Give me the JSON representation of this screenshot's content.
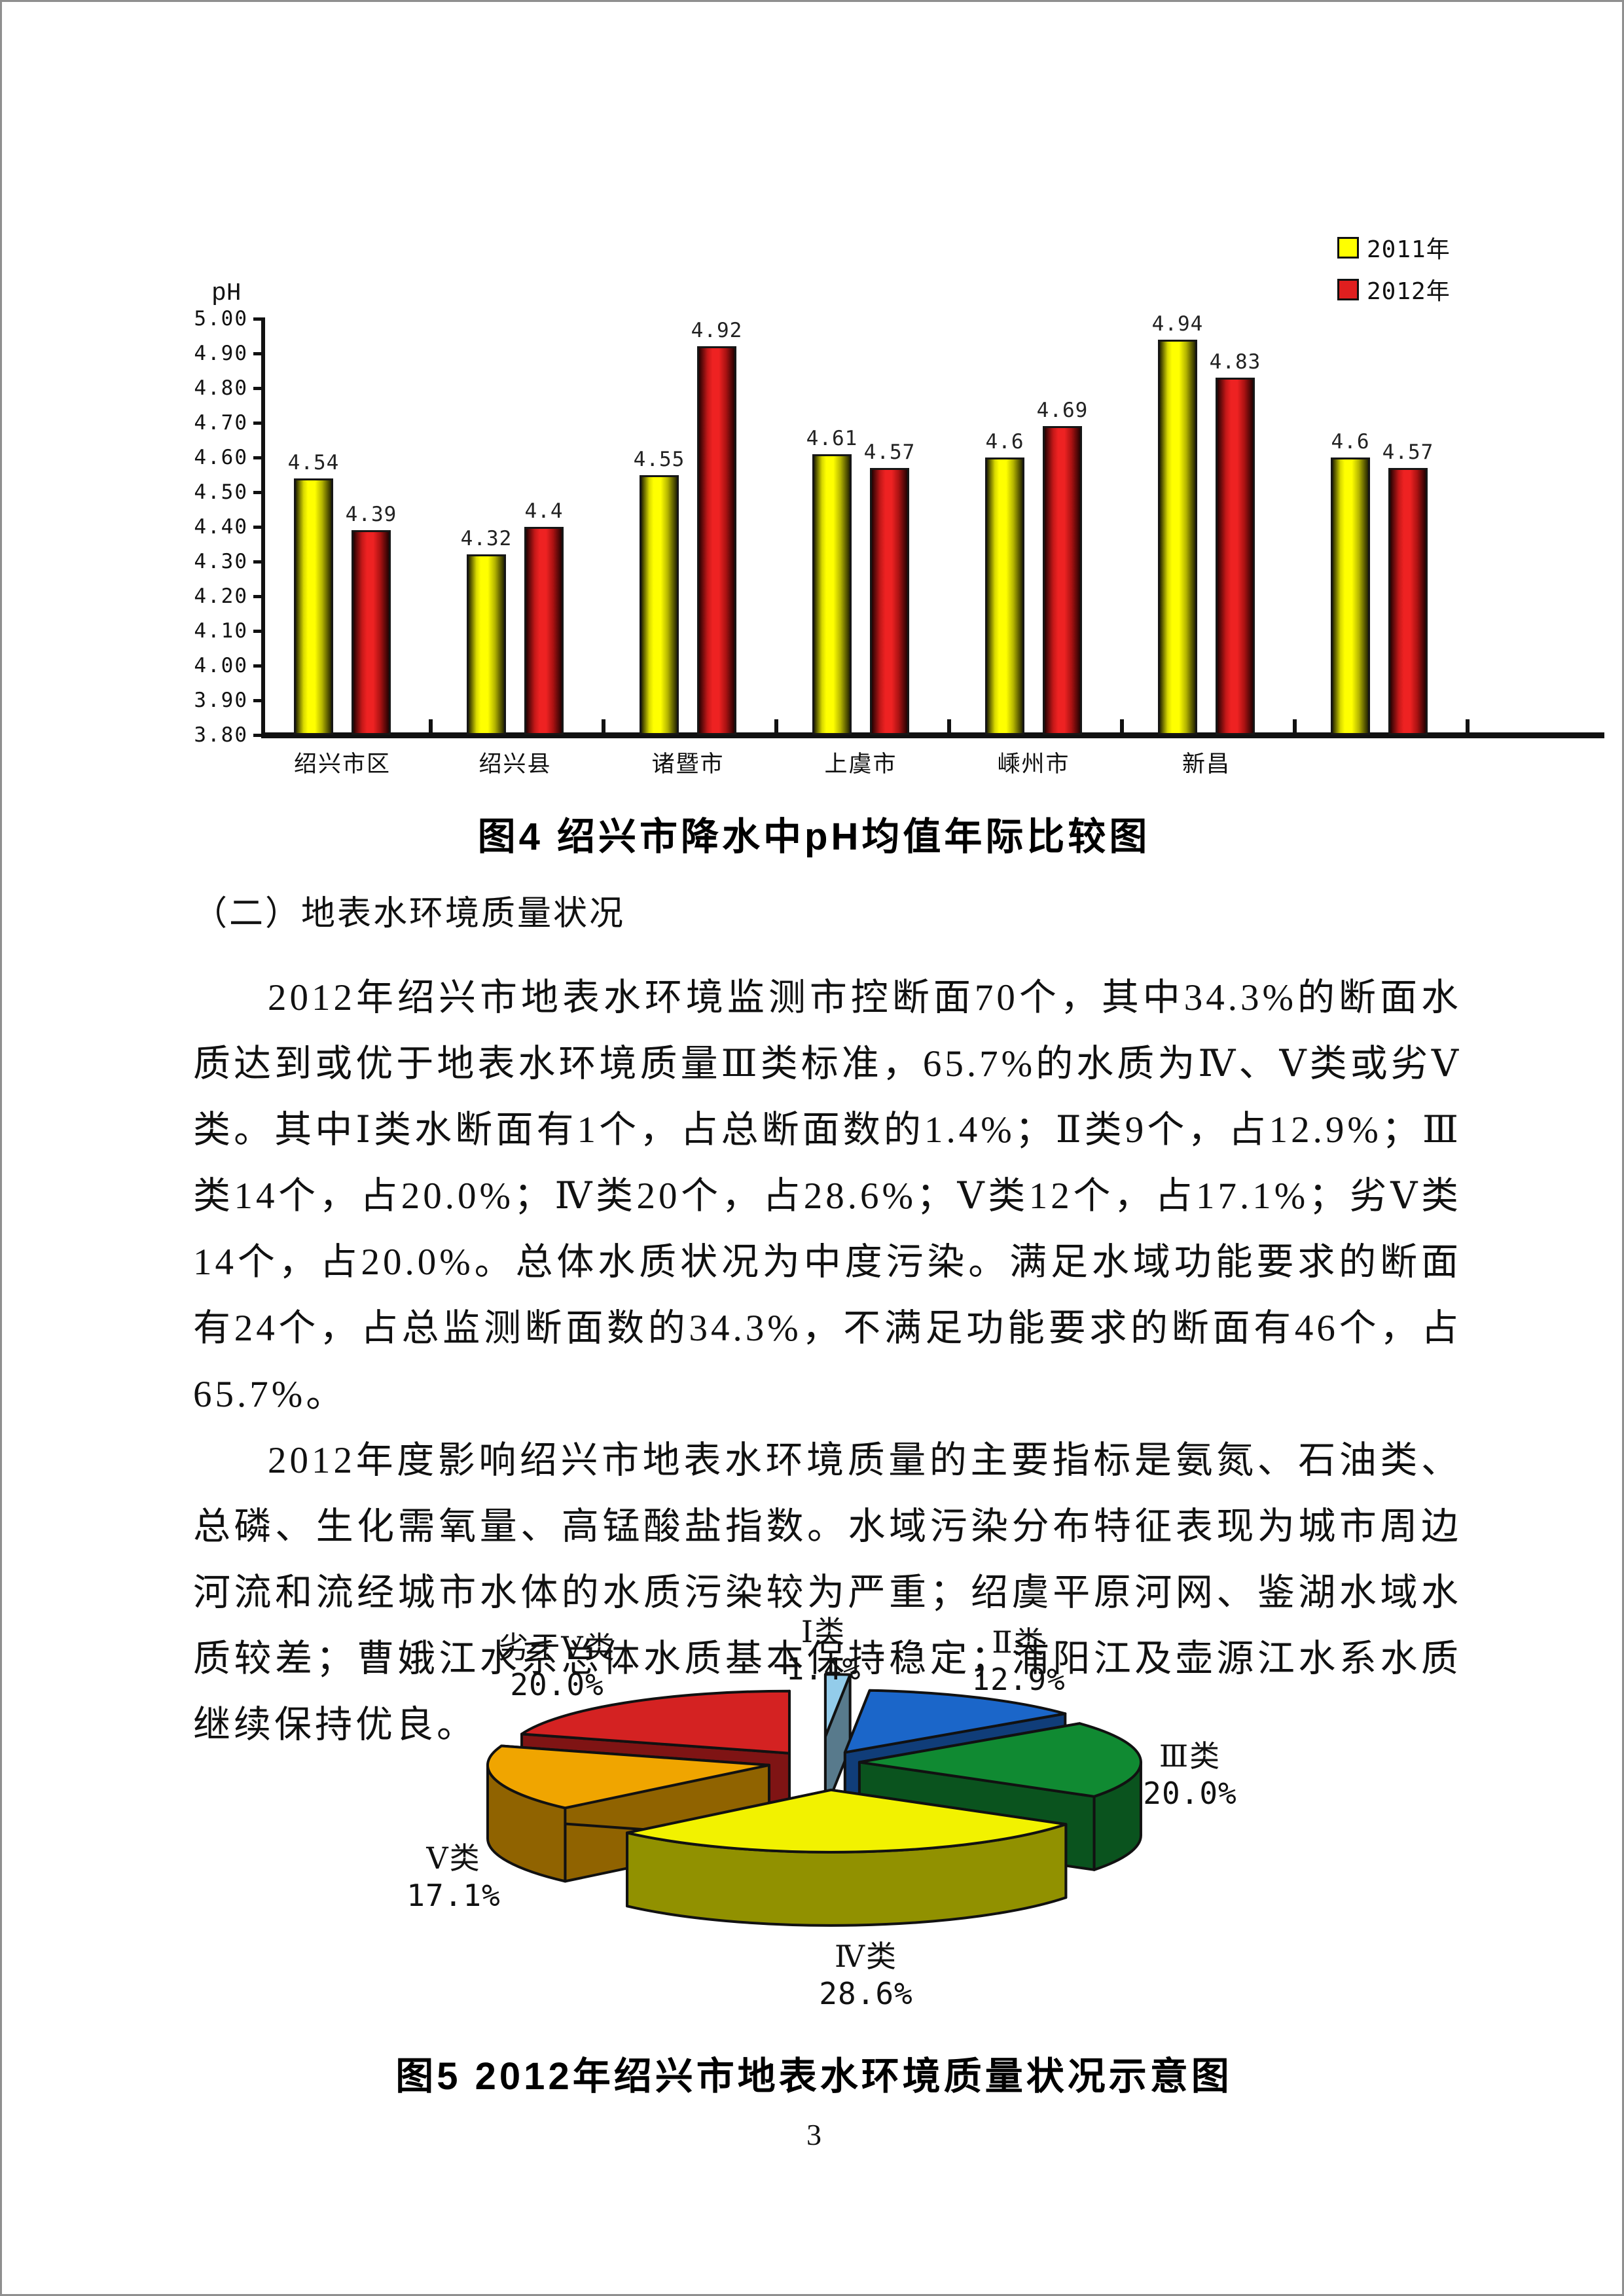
{
  "page": {
    "number": "3"
  },
  "bar_chart": {
    "ylabel": "pH",
    "y_ticks": [
      "5.00",
      "4.90",
      "4.80",
      "4.70",
      "4.60",
      "4.50",
      "4.40",
      "4.30",
      "4.20",
      "4.10",
      "4.00",
      "3.90",
      "3.80"
    ],
    "caption": "图4  绍兴市降水中pH均值年际比较图"
  },
  "legend": {
    "items": [
      {
        "label": "2011年",
        "color": "#ffff00"
      },
      {
        "label": "2012年",
        "color": "#e01f1f"
      }
    ]
  },
  "chart_data": [
    {
      "type": "bar",
      "title": "图4 绍兴市降水中pH均值年际比较图",
      "xlabel": "",
      "ylabel": "pH",
      "ylim": [
        3.8,
        5.0
      ],
      "ytick_step": 0.1,
      "grid": false,
      "legend_position": "top-right",
      "categories": [
        "绍兴市区",
        "绍兴县",
        "诸暨市",
        "上虞市",
        "嵊州市",
        "新昌",
        ""
      ],
      "series": [
        {
          "name": "2011年",
          "color": "#ffff00",
          "values": [
            4.54,
            4.32,
            4.55,
            4.61,
            4.6,
            4.94,
            4.6
          ],
          "value_labels": [
            "4.54",
            "4.32",
            "4.55",
            "4.61",
            "4.6",
            "4.94",
            "4.6"
          ]
        },
        {
          "name": "2012年",
          "color": "#e32222",
          "values": [
            4.39,
            4.4,
            4.92,
            4.57,
            4.69,
            4.83,
            4.57
          ],
          "value_labels": [
            "4.39",
            "4.4",
            "4.92",
            "4.57",
            "4.69",
            "4.83",
            "4.57"
          ]
        }
      ]
    },
    {
      "type": "pie",
      "style": "3d-exploded",
      "title": "图5 2012年绍兴市地表水环境质量状况示意图",
      "labels": [
        "Ⅰ类",
        "Ⅱ类",
        "Ⅲ类",
        "Ⅳ类",
        "Ⅴ类",
        "劣于Ⅴ类"
      ],
      "values": [
        1.4,
        12.9,
        20.0,
        28.6,
        17.1,
        20.0
      ],
      "percent_labels": [
        "1.4%",
        "12.9%",
        "20.0%",
        "28.6%",
        "17.1%",
        "20.0%"
      ],
      "colors": [
        "#93ccea",
        "#1b66c9",
        "#108a32",
        "#f2f200",
        "#f0a500",
        "#d42222"
      ]
    }
  ],
  "text": {
    "heading": "（二）地表水环境质量状况",
    "para1": "2012年绍兴市地表水环境监测市控断面70个，其中34.3%的断面水质达到或优于地表水环境质量Ⅲ类标准，65.7%的水质为Ⅳ、Ⅴ类或劣Ⅴ类。其中Ⅰ类水断面有1个，占总断面数的1.4%；Ⅱ类9个，占12.9%；Ⅲ类14个，占20.0%；Ⅳ类20个，占28.6%；Ⅴ类12个，占17.1%；劣Ⅴ类14个，占20.0%。总体水质状况为中度污染。满足水域功能要求的断面有24个，占总监测断面数的34.3%，不满足功能要求的断面有46个，占65.7%。",
    "para2": "2012年度影响绍兴市地表水环境质量的主要指标是氨氮、石油类、总磷、生化需氧量、高锰酸盐指数。水域污染分布特征表现为城市周边河流和流经城市水体的水质污染较为严重；绍虞平原河网、鉴湖水域水质较差；曹娥江水系总体水质基本保持稳定；浦阳江及壶源江水系水质继续保持优良。"
  },
  "pie_chart": {
    "caption": "图5  2012年绍兴市地表水环境质量状况示意图"
  }
}
